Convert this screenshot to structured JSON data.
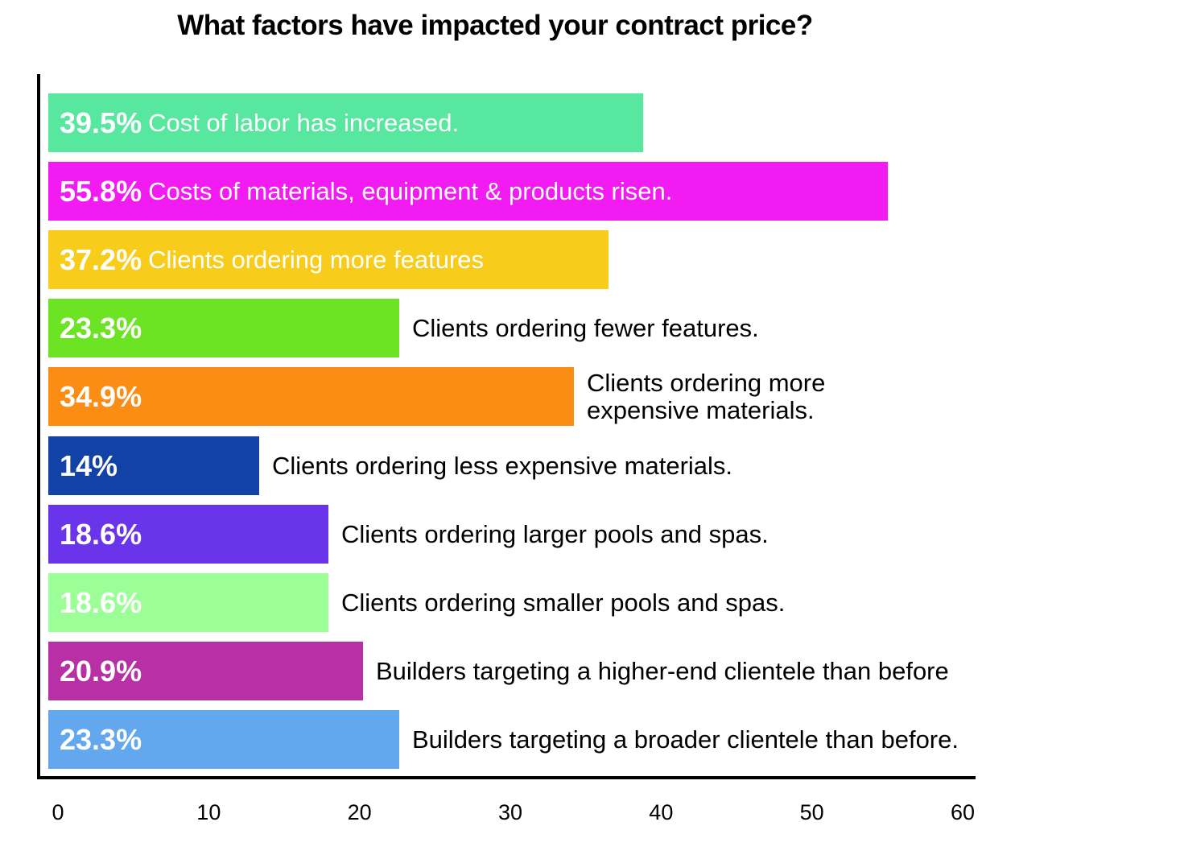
{
  "chart_data": {
    "type": "bar",
    "orientation": "horizontal",
    "title": "What factors have impacted your contract price?",
    "xlabel": "",
    "ylabel": "",
    "xlim": [
      0,
      60
    ],
    "x_ticks": [
      "0",
      "10",
      "20",
      "30",
      "40",
      "50",
      "60"
    ],
    "grid": false,
    "legend": "none",
    "categories": [
      "Cost of labor has increased.",
      "Costs of materials, equipment & products risen.",
      "Clients ordering more features",
      "Clients ordering fewer features.",
      "Clients ordering more expensive materials.",
      "Clients ordering less expensive materials.",
      "Clients ordering larger pools and spas.",
      "Clients ordering smaller pools and spas.",
      "Builders targeting a higher-end clientele than before",
      "Builders targeting a broader clientele than before."
    ],
    "values": [
      39.5,
      55.8,
      37.2,
      23.3,
      34.9,
      14,
      18.6,
      18.6,
      20.9,
      23.3
    ],
    "value_labels": [
      "39.5%",
      "55.8%",
      "37.2%",
      "23.3%",
      "34.9%",
      "14%",
      "18.6%",
      "18.6%",
      "20.9%",
      "23.3%"
    ],
    "label_lines": [
      [
        "Cost of labor has increased."
      ],
      [
        "Costs of materials, equipment & products risen."
      ],
      [
        "Clients ordering more features"
      ],
      [
        "Clients ordering fewer features."
      ],
      [
        "Clients ordering more",
        "expensive materials."
      ],
      [
        "Clients ordering less expensive materials."
      ],
      [
        "Clients ordering larger pools and spas."
      ],
      [
        "Clients ordering smaller pools and spas."
      ],
      [
        "Builders targeting a higher-end clientele than before"
      ],
      [
        "Builders targeting a broader clientele than before."
      ]
    ],
    "label_inside": [
      true,
      true,
      true,
      false,
      false,
      false,
      false,
      false,
      false,
      false
    ],
    "colors": [
      "#57e79f",
      "#f21bf2",
      "#f8cc1b",
      "#6ce424",
      "#fb8c14",
      "#1342a6",
      "#6a35ea",
      "#9cfe96",
      "#b730a5",
      "#63a7ef"
    ]
  }
}
